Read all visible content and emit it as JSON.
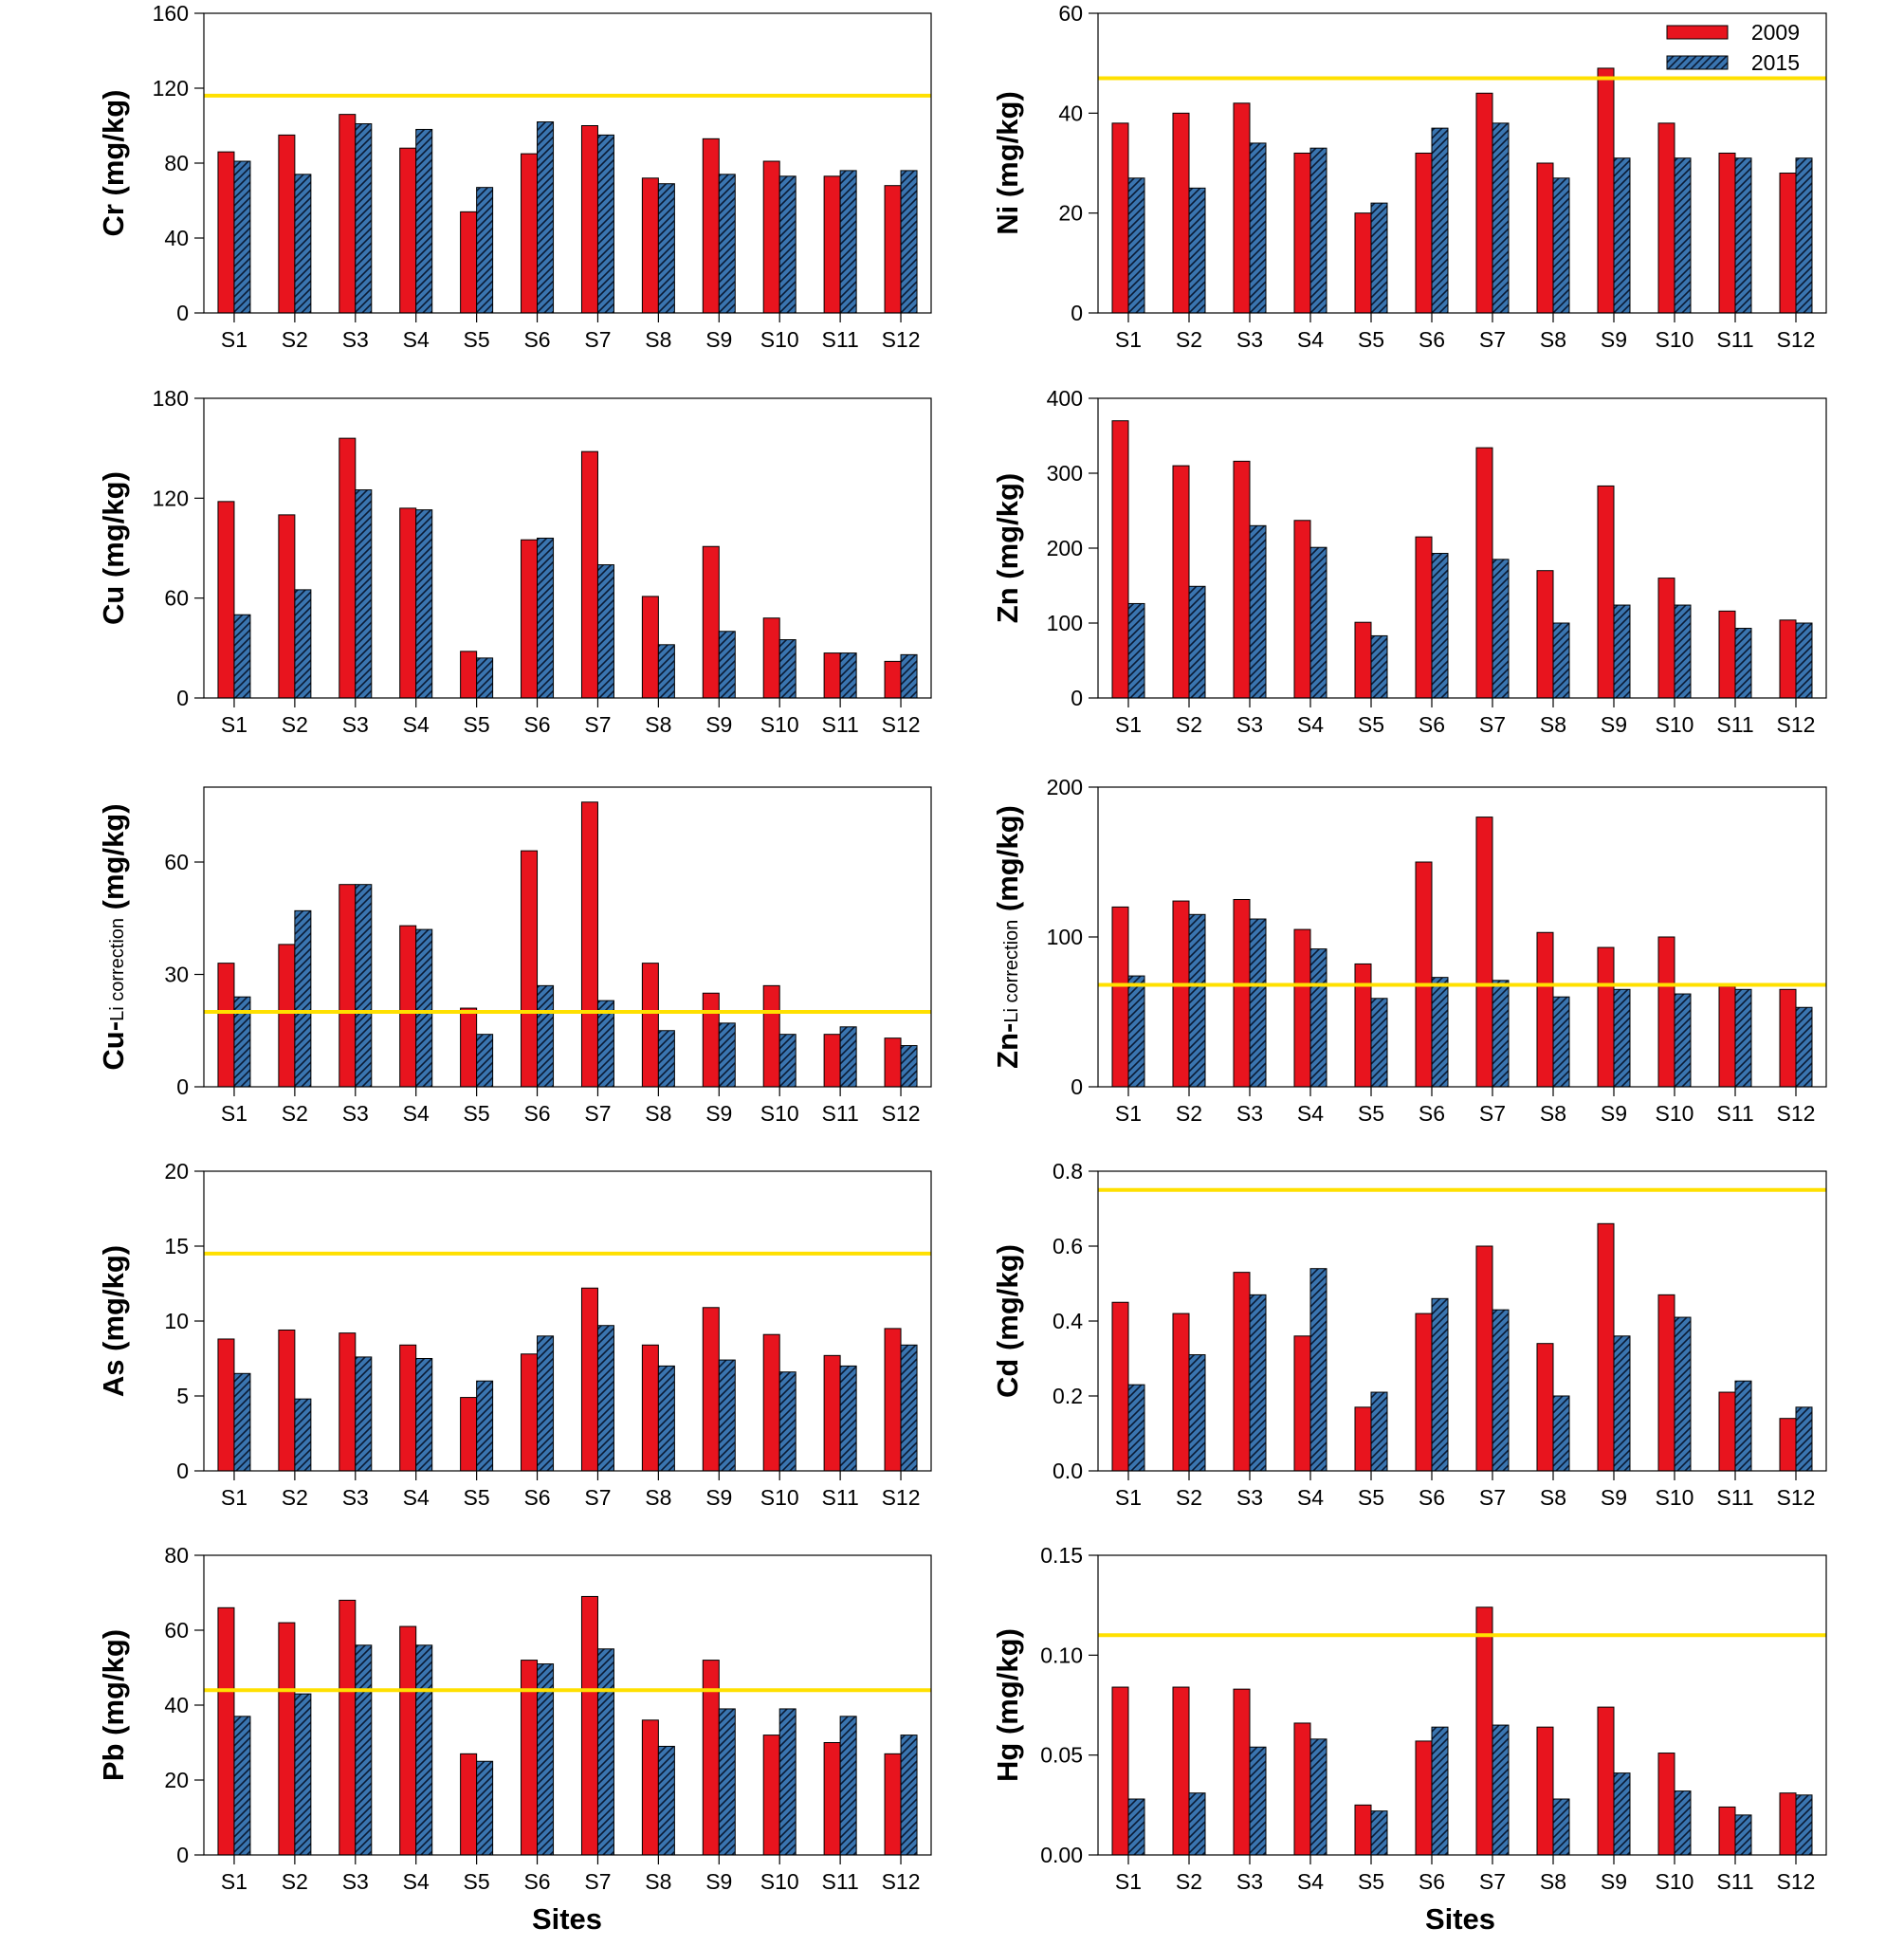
{
  "legend": {
    "series": [
      {
        "name": "2009",
        "color": "#e8141e"
      },
      {
        "name": "2015",
        "color": "#3a75b0"
      }
    ]
  },
  "x_axis_label": "Sites",
  "colors": {
    "threshold": "#ffe000",
    "bar_2009": "#e8141e",
    "bar_2015": "#3a75b0"
  },
  "chart_data": [
    {
      "id": "cr",
      "type": "bar",
      "ylabel_main": "Cr",
      "ylabel_sub": "",
      "ylabel_unit": " (mg/kg)",
      "categories": [
        "S1",
        "S2",
        "S3",
        "S4",
        "S5",
        "S6",
        "S7",
        "S8",
        "S9",
        "S10",
        "S11",
        "S12"
      ],
      "ylim": [
        0,
        160
      ],
      "yticks": [
        0,
        40,
        80,
        120,
        160
      ],
      "ytick_labels": [
        "0",
        "40",
        "80",
        "120",
        "160"
      ],
      "threshold": 116,
      "series": [
        {
          "name": "2009",
          "values": [
            86,
            95,
            106,
            88,
            54,
            85,
            100,
            72,
            93,
            81,
            73,
            68
          ]
        },
        {
          "name": "2015",
          "values": [
            81,
            74,
            101,
            98,
            67,
            102,
            95,
            69,
            74,
            73,
            76,
            76
          ]
        }
      ]
    },
    {
      "id": "ni",
      "type": "bar",
      "ylabel_main": "Ni",
      "ylabel_sub": "",
      "ylabel_unit": " (mg/kg)",
      "categories": [
        "S1",
        "S2",
        "S3",
        "S4",
        "S5",
        "S6",
        "S7",
        "S8",
        "S9",
        "S10",
        "S11",
        "S12"
      ],
      "ylim": [
        0,
        60
      ],
      "yticks": [
        0,
        20,
        40,
        60
      ],
      "ytick_labels": [
        "0",
        "20",
        "40",
        "60"
      ],
      "threshold": 47,
      "series": [
        {
          "name": "2009",
          "values": [
            38,
            40,
            42,
            32,
            20,
            32,
            44,
            30,
            49,
            38,
            32,
            28
          ]
        },
        {
          "name": "2015",
          "values": [
            27,
            25,
            34,
            33,
            22,
            37,
            38,
            27,
            31,
            31,
            31,
            31
          ]
        }
      ]
    },
    {
      "id": "cu",
      "type": "bar",
      "ylabel_main": "Cu",
      "ylabel_sub": "",
      "ylabel_unit": " (mg/kg)",
      "categories": [
        "S1",
        "S2",
        "S3",
        "S4",
        "S5",
        "S6",
        "S7",
        "S8",
        "S9",
        "S10",
        "S11",
        "S12"
      ],
      "ylim": [
        0,
        180
      ],
      "yticks": [
        0,
        60,
        120,
        180
      ],
      "ytick_labels": [
        "0",
        "60",
        "120",
        "180"
      ],
      "threshold": null,
      "series": [
        {
          "name": "2009",
          "values": [
            118,
            110,
            156,
            114,
            28,
            95,
            148,
            61,
            91,
            48,
            27,
            22
          ]
        },
        {
          "name": "2015",
          "values": [
            50,
            65,
            125,
            113,
            24,
            96,
            80,
            32,
            40,
            35,
            27,
            26
          ]
        }
      ]
    },
    {
      "id": "zn",
      "type": "bar",
      "ylabel_main": "Zn",
      "ylabel_sub": "",
      "ylabel_unit": " (mg/kg)",
      "categories": [
        "S1",
        "S2",
        "S3",
        "S4",
        "S5",
        "S6",
        "S7",
        "S8",
        "S9",
        "S10",
        "S11",
        "S12"
      ],
      "ylim": [
        0,
        400
      ],
      "yticks": [
        0,
        100,
        200,
        300,
        400
      ],
      "ytick_labels": [
        "0",
        "100",
        "200",
        "300",
        "400"
      ],
      "threshold": null,
      "series": [
        {
          "name": "2009",
          "values": [
            370,
            310,
            316,
            237,
            101,
            215,
            334,
            170,
            283,
            160,
            116,
            104
          ]
        },
        {
          "name": "2015",
          "values": [
            126,
            149,
            230,
            201,
            83,
            193,
            185,
            100,
            124,
            124,
            93,
            100
          ]
        }
      ]
    },
    {
      "id": "cu_li",
      "type": "bar",
      "ylabel_main": "Cu-",
      "ylabel_sub": "Li correction",
      "ylabel_unit": " (mg/kg)",
      "categories": [
        "S1",
        "S2",
        "S3",
        "S4",
        "S5",
        "S6",
        "S7",
        "S8",
        "S9",
        "S10",
        "S11",
        "S12"
      ],
      "ylim": [
        0,
        80
      ],
      "yticks": [
        0,
        30,
        60
      ],
      "ytick_labels": [
        "0",
        "30",
        "60"
      ],
      "threshold": 20,
      "series": [
        {
          "name": "2009",
          "values": [
            33,
            38,
            54,
            43,
            21,
            63,
            76,
            33,
            25,
            27,
            14,
            13
          ]
        },
        {
          "name": "2015",
          "values": [
            24,
            47,
            54,
            42,
            14,
            27,
            23,
            15,
            17,
            14,
            16,
            11
          ]
        }
      ]
    },
    {
      "id": "zn_li",
      "type": "bar",
      "ylabel_main": "Zn-",
      "ylabel_sub": "Li correction",
      "ylabel_unit": " (mg/kg)",
      "categories": [
        "S1",
        "S2",
        "S3",
        "S4",
        "S5",
        "S6",
        "S7",
        "S8",
        "S9",
        "S10",
        "S11",
        "S12"
      ],
      "ylim": [
        0,
        200
      ],
      "yticks": [
        0,
        100,
        200
      ],
      "ytick_labels": [
        "0",
        "100",
        "200"
      ],
      "threshold": 68,
      "series": [
        {
          "name": "2009",
          "values": [
            120,
            124,
            125,
            105,
            82,
            150,
            180,
            103,
            93,
            100,
            67,
            65
          ]
        },
        {
          "name": "2015",
          "values": [
            74,
            115,
            112,
            92,
            59,
            73,
            71,
            60,
            65,
            62,
            65,
            53
          ]
        }
      ]
    },
    {
      "id": "as",
      "type": "bar",
      "ylabel_main": "As",
      "ylabel_sub": "",
      "ylabel_unit": " (mg/kg)",
      "categories": [
        "S1",
        "S2",
        "S3",
        "S4",
        "S5",
        "S6",
        "S7",
        "S8",
        "S9",
        "S10",
        "S11",
        "S12"
      ],
      "ylim": [
        0,
        20
      ],
      "yticks": [
        0,
        5,
        10,
        15,
        20
      ],
      "ytick_labels": [
        "0",
        "5",
        "10",
        "15",
        "20"
      ],
      "threshold": 14.5,
      "series": [
        {
          "name": "2009",
          "values": [
            8.8,
            9.4,
            9.2,
            8.4,
            4.9,
            7.8,
            12.2,
            8.4,
            10.9,
            9.1,
            7.7,
            9.5
          ]
        },
        {
          "name": "2015",
          "values": [
            6.5,
            4.8,
            7.6,
            7.5,
            6.0,
            9.0,
            9.7,
            7.0,
            7.4,
            6.6,
            7.0,
            8.4
          ]
        }
      ]
    },
    {
      "id": "cd",
      "type": "bar",
      "ylabel_main": "Cd",
      "ylabel_sub": "",
      "ylabel_unit": " (mg/kg)",
      "categories": [
        "S1",
        "S2",
        "S3",
        "S4",
        "S5",
        "S6",
        "S7",
        "S8",
        "S9",
        "S10",
        "S11",
        "S12"
      ],
      "ylim": [
        0,
        0.8
      ],
      "yticks": [
        0,
        0.2,
        0.4,
        0.6,
        0.8
      ],
      "ytick_labels": [
        "0.0",
        "0.2",
        "0.4",
        "0.6",
        "0.8"
      ],
      "threshold": 0.75,
      "series": [
        {
          "name": "2009",
          "values": [
            0.45,
            0.42,
            0.53,
            0.36,
            0.17,
            0.42,
            0.6,
            0.34,
            0.66,
            0.47,
            0.21,
            0.14
          ]
        },
        {
          "name": "2015",
          "values": [
            0.23,
            0.31,
            0.47,
            0.54,
            0.21,
            0.46,
            0.43,
            0.2,
            0.36,
            0.41,
            0.24,
            0.17
          ]
        }
      ]
    },
    {
      "id": "pb",
      "type": "bar",
      "ylabel_main": "Pb",
      "ylabel_sub": "",
      "ylabel_unit": " (mg/kg)",
      "categories": [
        "S1",
        "S2",
        "S3",
        "S4",
        "S5",
        "S6",
        "S7",
        "S8",
        "S9",
        "S10",
        "S11",
        "S12"
      ],
      "ylim": [
        0,
        80
      ],
      "yticks": [
        0,
        20,
        40,
        60,
        80
      ],
      "ytick_labels": [
        "0",
        "20",
        "40",
        "60",
        "80"
      ],
      "threshold": 44,
      "series": [
        {
          "name": "2009",
          "values": [
            66,
            62,
            68,
            61,
            27,
            52,
            69,
            36,
            52,
            32,
            30,
            27
          ]
        },
        {
          "name": "2015",
          "values": [
            37,
            43,
            56,
            56,
            25,
            51,
            55,
            29,
            39,
            39,
            37,
            32
          ]
        }
      ]
    },
    {
      "id": "hg",
      "type": "bar",
      "ylabel_main": "Hg",
      "ylabel_sub": "",
      "ylabel_unit": " (mg/kg)",
      "categories": [
        "S1",
        "S2",
        "S3",
        "S4",
        "S5",
        "S6",
        "S7",
        "S8",
        "S9",
        "S10",
        "S11",
        "S12"
      ],
      "ylim": [
        0,
        0.15
      ],
      "yticks": [
        0,
        0.05,
        0.1,
        0.15
      ],
      "ytick_labels": [
        "0.00",
        "0.05",
        "0.10",
        "0.15"
      ],
      "threshold": 0.11,
      "series": [
        {
          "name": "2009",
          "values": [
            0.084,
            0.084,
            0.083,
            0.066,
            0.025,
            0.057,
            0.124,
            0.064,
            0.074,
            0.051,
            0.024,
            0.031
          ]
        },
        {
          "name": "2015",
          "values": [
            0.028,
            0.031,
            0.054,
            0.058,
            0.022,
            0.064,
            0.065,
            0.028,
            0.041,
            0.032,
            0.02,
            0.03
          ]
        }
      ]
    }
  ]
}
